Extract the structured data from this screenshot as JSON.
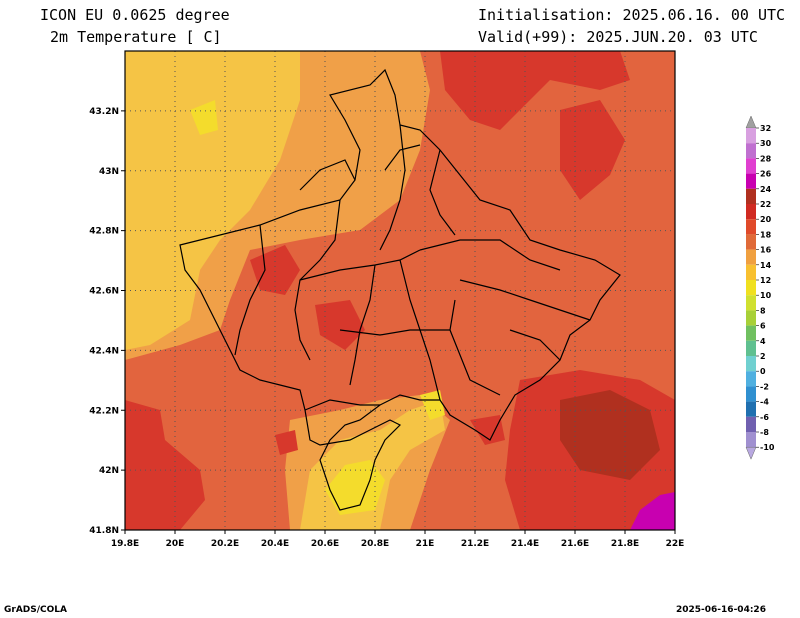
{
  "header": {
    "model": "ICON EU 0.0625 degree",
    "variable": "2m Temperature [ C]",
    "init": "Initialisation: 2025.06.16. 00 UTC",
    "valid": "Valid(+99): 2025.JUN.20. 03 UTC"
  },
  "footer": {
    "left": "GrADS/COLA",
    "right": "2025-06-16-04:26"
  },
  "map": {
    "lon_range": [
      19.8,
      22.0
    ],
    "lat_range": [
      41.8,
      43.4
    ],
    "lon_ticks": [
      "19.8E",
      "20E",
      "20.2E",
      "20.4E",
      "20.6E",
      "20.8E",
      "21E",
      "21.2E",
      "21.4E",
      "21.6E",
      "21.8E",
      "22E"
    ],
    "lon_tick_values": [
      19.8,
      20.0,
      20.2,
      20.4,
      20.6,
      20.8,
      21.0,
      21.2,
      21.4,
      21.6,
      21.8,
      22.0
    ],
    "lat_ticks": [
      "41.8N",
      "42N",
      "42.2N",
      "42.4N",
      "42.6N",
      "42.8N",
      "43N",
      "43.2N"
    ],
    "lat_tick_values": [
      41.8,
      42.0,
      42.2,
      42.4,
      42.6,
      42.8,
      43.0,
      43.2
    ],
    "gridlines": true
  },
  "colorbar": {
    "labels": [
      "32",
      "30",
      "28",
      "26",
      "24",
      "22",
      "20",
      "18",
      "16",
      "14",
      "12",
      "10",
      "8",
      "6",
      "4",
      "2",
      "0",
      "-2",
      "-4",
      "-6",
      "-8",
      "-10"
    ],
    "colors": [
      "#a0a0a0",
      "#d8a0e0",
      "#c070d0",
      "#e040d0",
      "#c800b0",
      "#b03020",
      "#d02a22",
      "#e04a2a",
      "#e06a38",
      "#f0a040",
      "#f8c030",
      "#f0e020",
      "#d0e030",
      "#a8d038",
      "#70c060",
      "#60c090",
      "#70d0d0",
      "#50b0e0",
      "#3090d0",
      "#2070b0",
      "#7060b0",
      "#a090d0",
      "#b8a8e0"
    ]
  },
  "colors": {
    "t14": "#f5c445",
    "t16": "#f0a048",
    "t18": "#e2643e",
    "t20": "#d7382c",
    "t22": "#b0301f",
    "t24": "#c800b0",
    "t12": "#f4dc2c",
    "border": "#000000",
    "grid": "#555555"
  }
}
